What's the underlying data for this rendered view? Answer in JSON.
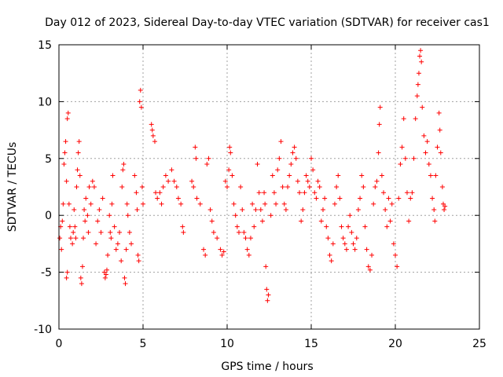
{
  "chart_data": {
    "type": "scatter",
    "title": "Day 012 of 2023, Sidereal Day-to-day VTEC variation (SDTVAR) for receiver cas1",
    "xlabel": "GPS time / hours",
    "ylabel": "SDTVAR / TECUs",
    "xlim": [
      0,
      25
    ],
    "ylim": [
      -10,
      15
    ],
    "x_ticks": [
      0,
      5,
      10,
      15,
      20,
      25
    ],
    "y_ticks": [
      -10,
      -5,
      0,
      5,
      10,
      15
    ],
    "x_tick_labels": [
      "0",
      "5",
      "10",
      "15",
      "20",
      "25"
    ],
    "y_tick_labels": [
      "-10",
      "-5",
      "0",
      "5",
      "10",
      "15"
    ],
    "grid": true,
    "marker": "+",
    "marker_color": "#ff0000",
    "series": [
      {
        "name": "cas1",
        "points": [
          [
            0.05,
            -2.0
          ],
          [
            0.1,
            -1.0
          ],
          [
            0.15,
            -3.0
          ],
          [
            0.2,
            -0.5
          ],
          [
            0.25,
            1.0
          ],
          [
            0.3,
            4.5
          ],
          [
            0.35,
            5.5
          ],
          [
            0.4,
            6.5
          ],
          [
            0.45,
            3.0
          ],
          [
            0.5,
            8.5
          ],
          [
            0.55,
            9.0
          ],
          [
            0.5,
            -5.0
          ],
          [
            0.45,
            -5.5
          ],
          [
            0.6,
            1.0
          ],
          [
            0.65,
            -1.0
          ],
          [
            0.7,
            -2.0
          ],
          [
            0.8,
            -2.5
          ],
          [
            0.85,
            -1.5
          ],
          [
            0.9,
            0.5
          ],
          [
            0.95,
            -1.0
          ],
          [
            1.0,
            -2.0
          ],
          [
            1.05,
            2.5
          ],
          [
            1.1,
            4.0
          ],
          [
            1.15,
            5.5
          ],
          [
            1.2,
            6.5
          ],
          [
            1.25,
            3.5
          ],
          [
            1.3,
            -5.5
          ],
          [
            1.35,
            -6.0
          ],
          [
            1.4,
            -4.5
          ],
          [
            1.45,
            -2.0
          ],
          [
            1.5,
            0.5
          ],
          [
            1.55,
            -0.5
          ],
          [
            1.6,
            1.5
          ],
          [
            1.7,
            0.0
          ],
          [
            1.75,
            -1.5
          ],
          [
            1.8,
            2.5
          ],
          [
            1.9,
            1.0
          ],
          [
            2.0,
            3.0
          ],
          [
            2.1,
            2.5
          ],
          [
            2.2,
            -2.5
          ],
          [
            2.3,
            -0.5
          ],
          [
            2.4,
            0.5
          ],
          [
            2.5,
            -1.5
          ],
          [
            2.6,
            1.5
          ],
          [
            2.7,
            -5.0
          ],
          [
            2.75,
            -5.5
          ],
          [
            2.8,
            -5.2
          ],
          [
            2.85,
            -4.8
          ],
          [
            2.9,
            -3.5
          ],
          [
            3.0,
            0.0
          ],
          [
            3.05,
            -1.5
          ],
          [
            3.1,
            -2.0
          ],
          [
            3.15,
            1.0
          ],
          [
            3.2,
            3.5
          ],
          [
            3.3,
            -1.0
          ],
          [
            3.4,
            -3.0
          ],
          [
            3.5,
            -2.5
          ],
          [
            3.6,
            -1.5
          ],
          [
            3.7,
            -4.0
          ],
          [
            3.75,
            2.5
          ],
          [
            3.8,
            4.0
          ],
          [
            3.85,
            4.5
          ],
          [
            3.9,
            -5.5
          ],
          [
            3.95,
            -6.0
          ],
          [
            4.0,
            -3.0
          ],
          [
            4.05,
            1.0
          ],
          [
            4.1,
            0.0
          ],
          [
            4.2,
            -1.5
          ],
          [
            4.3,
            -2.5
          ],
          [
            4.5,
            3.5
          ],
          [
            4.6,
            2.0
          ],
          [
            4.65,
            0.5
          ],
          [
            4.7,
            -3.5
          ],
          [
            4.75,
            -4.0
          ],
          [
            4.8,
            10.0
          ],
          [
            4.85,
            11.0
          ],
          [
            4.9,
            9.5
          ],
          [
            4.95,
            2.5
          ],
          [
            5.0,
            1.0
          ],
          [
            5.5,
            8.0
          ],
          [
            5.55,
            7.5
          ],
          [
            5.6,
            7.0
          ],
          [
            5.7,
            6.5
          ],
          [
            5.75,
            2.0
          ],
          [
            5.85,
            1.5
          ],
          [
            6.0,
            2.0
          ],
          [
            6.1,
            1.0
          ],
          [
            6.2,
            2.5
          ],
          [
            6.35,
            3.5
          ],
          [
            6.5,
            3.0
          ],
          [
            6.7,
            4.0
          ],
          [
            6.85,
            3.0
          ],
          [
            7.0,
            2.5
          ],
          [
            7.1,
            1.5
          ],
          [
            7.25,
            1.0
          ],
          [
            7.35,
            -1.0
          ],
          [
            7.4,
            -1.5
          ],
          [
            7.9,
            3.0
          ],
          [
            8.0,
            2.5
          ],
          [
            8.1,
            6.0
          ],
          [
            8.15,
            5.0
          ],
          [
            8.2,
            1.5
          ],
          [
            8.4,
            1.0
          ],
          [
            8.6,
            -3.0
          ],
          [
            8.7,
            -3.5
          ],
          [
            8.8,
            4.5
          ],
          [
            8.9,
            5.0
          ],
          [
            9.0,
            0.5
          ],
          [
            9.1,
            -0.5
          ],
          [
            9.2,
            -1.5
          ],
          [
            9.4,
            -2.0
          ],
          [
            9.6,
            -3.0
          ],
          [
            9.7,
            -3.5
          ],
          [
            9.8,
            -3.2
          ],
          [
            9.9,
            3.0
          ],
          [
            10.0,
            2.5
          ],
          [
            10.1,
            4.0
          ],
          [
            10.15,
            6.0
          ],
          [
            10.2,
            5.5
          ],
          [
            10.3,
            3.5
          ],
          [
            10.4,
            1.0
          ],
          [
            10.5,
            0.0
          ],
          [
            10.6,
            -1.0
          ],
          [
            10.7,
            -1.5
          ],
          [
            10.8,
            2.5
          ],
          [
            10.9,
            0.5
          ],
          [
            11.0,
            -1.5
          ],
          [
            11.1,
            -2.0
          ],
          [
            11.2,
            -3.0
          ],
          [
            11.3,
            -3.5
          ],
          [
            11.4,
            -2.0
          ],
          [
            11.5,
            1.0
          ],
          [
            11.6,
            -1.0
          ],
          [
            11.7,
            0.5
          ],
          [
            11.8,
            4.5
          ],
          [
            11.9,
            2.0
          ],
          [
            12.0,
            0.5
          ],
          [
            12.1,
            -0.5
          ],
          [
            12.2,
            2.0
          ],
          [
            12.25,
            1.0
          ],
          [
            12.3,
            -4.5
          ],
          [
            12.35,
            -6.5
          ],
          [
            12.4,
            -7.5
          ],
          [
            12.45,
            -7.0
          ],
          [
            12.6,
            0.0
          ],
          [
            12.7,
            3.5
          ],
          [
            12.8,
            2.0
          ],
          [
            12.9,
            1.0
          ],
          [
            13.0,
            4.0
          ],
          [
            13.1,
            5.0
          ],
          [
            13.2,
            6.5
          ],
          [
            13.3,
            2.5
          ],
          [
            13.4,
            1.0
          ],
          [
            13.5,
            0.5
          ],
          [
            13.6,
            2.5
          ],
          [
            13.7,
            3.5
          ],
          [
            13.8,
            4.5
          ],
          [
            13.9,
            5.5
          ],
          [
            14.0,
            6.0
          ],
          [
            14.1,
            5.0
          ],
          [
            14.2,
            3.0
          ],
          [
            14.3,
            2.0
          ],
          [
            14.4,
            -0.5
          ],
          [
            14.5,
            0.5
          ],
          [
            14.6,
            2.0
          ],
          [
            14.7,
            3.5
          ],
          [
            14.8,
            3.0
          ],
          [
            14.9,
            2.5
          ],
          [
            15.0,
            5.0
          ],
          [
            15.1,
            4.0
          ],
          [
            15.2,
            2.0
          ],
          [
            15.3,
            1.5
          ],
          [
            15.4,
            3.0
          ],
          [
            15.5,
            2.5
          ],
          [
            15.6,
            -0.5
          ],
          [
            15.7,
            0.5
          ],
          [
            15.8,
            1.5
          ],
          [
            15.9,
            -1.0
          ],
          [
            16.0,
            -2.0
          ],
          [
            16.1,
            -3.5
          ],
          [
            16.2,
            -4.0
          ],
          [
            16.3,
            -2.5
          ],
          [
            16.4,
            1.0
          ],
          [
            16.5,
            2.5
          ],
          [
            16.6,
            3.5
          ],
          [
            16.7,
            1.5
          ],
          [
            16.8,
            -1.0
          ],
          [
            16.9,
            -2.0
          ],
          [
            17.0,
            -2.5
          ],
          [
            17.1,
            -3.0
          ],
          [
            17.2,
            -1.0
          ],
          [
            17.3,
            0.0
          ],
          [
            17.4,
            -1.5
          ],
          [
            17.5,
            -2.5
          ],
          [
            17.6,
            -3.0
          ],
          [
            17.7,
            -2.0
          ],
          [
            17.8,
            0.5
          ],
          [
            17.9,
            1.5
          ],
          [
            18.0,
            3.5
          ],
          [
            18.1,
            2.5
          ],
          [
            18.2,
            -1.0
          ],
          [
            18.3,
            -3.0
          ],
          [
            18.4,
            -4.5
          ],
          [
            18.5,
            -4.8
          ],
          [
            18.6,
            -3.5
          ],
          [
            18.7,
            1.0
          ],
          [
            18.8,
            2.5
          ],
          [
            18.9,
            3.0
          ],
          [
            19.0,
            5.5
          ],
          [
            19.05,
            8.0
          ],
          [
            19.1,
            9.5
          ],
          [
            19.2,
            3.5
          ],
          [
            19.3,
            2.0
          ],
          [
            19.4,
            0.5
          ],
          [
            19.5,
            -1.0
          ],
          [
            19.6,
            1.5
          ],
          [
            19.7,
            -0.5
          ],
          [
            19.8,
            1.0
          ],
          [
            19.9,
            -2.5
          ],
          [
            20.0,
            -3.5
          ],
          [
            20.1,
            -4.5
          ],
          [
            20.2,
            1.5
          ],
          [
            20.3,
            4.5
          ],
          [
            20.4,
            6.0
          ],
          [
            20.5,
            8.5
          ],
          [
            20.6,
            5.0
          ],
          [
            20.7,
            2.0
          ],
          [
            20.8,
            -0.5
          ],
          [
            20.9,
            1.5
          ],
          [
            21.0,
            2.0
          ],
          [
            21.1,
            5.0
          ],
          [
            21.2,
            8.5
          ],
          [
            21.3,
            10.5
          ],
          [
            21.35,
            11.5
          ],
          [
            21.4,
            12.5
          ],
          [
            21.45,
            14.0
          ],
          [
            21.5,
            14.5
          ],
          [
            21.55,
            13.5
          ],
          [
            21.6,
            9.5
          ],
          [
            21.7,
            7.0
          ],
          [
            21.8,
            5.5
          ],
          [
            21.9,
            6.5
          ],
          [
            22.0,
            4.5
          ],
          [
            22.1,
            3.5
          ],
          [
            22.2,
            1.5
          ],
          [
            22.3,
            0.5
          ],
          [
            22.35,
            -0.5
          ],
          [
            22.4,
            3.5
          ],
          [
            22.5,
            6.0
          ],
          [
            22.6,
            9.0
          ],
          [
            22.65,
            7.5
          ],
          [
            22.7,
            5.5
          ],
          [
            22.8,
            2.5
          ],
          [
            22.85,
            1.0
          ],
          [
            22.9,
            0.5
          ],
          [
            22.95,
            0.8
          ]
        ]
      }
    ]
  }
}
